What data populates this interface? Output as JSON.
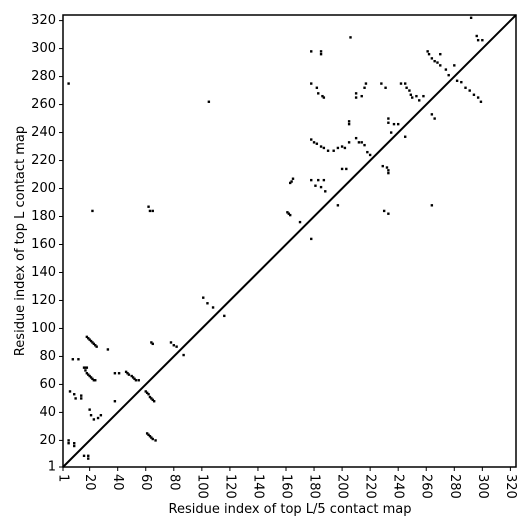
{
  "chart_data": {
    "type": "scatter",
    "xlabel": "Residue index of top L/5 contact map",
    "ylabel": "Residue index of top L contact map",
    "xlim": [
      1,
      324
    ],
    "ylim": [
      1,
      324
    ],
    "xticks": [
      1,
      20,
      40,
      60,
      80,
      100,
      120,
      140,
      160,
      180,
      200,
      220,
      240,
      260,
      280,
      300,
      320
    ],
    "yticks": [
      1,
      20,
      40,
      60,
      80,
      100,
      120,
      140,
      160,
      180,
      200,
      220,
      240,
      260,
      280,
      300,
      320
    ],
    "color": "#000000",
    "x": [
      5,
      18,
      19,
      20,
      21,
      22,
      23,
      24,
      25,
      17,
      18,
      19,
      20,
      21,
      22,
      23,
      24,
      16,
      17,
      18,
      8,
      12,
      6,
      9,
      14,
      14,
      10,
      20,
      21,
      23,
      26,
      28,
      5,
      5,
      9,
      9,
      16,
      19,
      19,
      22,
      38,
      41,
      33,
      38,
      46,
      47,
      48,
      50,
      51,
      52,
      53,
      55,
      60,
      61,
      62,
      63,
      64,
      65,
      66,
      61,
      62,
      63,
      64,
      65,
      67,
      62,
      63,
      65,
      64,
      65,
      78,
      80,
      82,
      87,
      101,
      104,
      108,
      116,
      105,
      161,
      162,
      163,
      164,
      163,
      165,
      170,
      178,
      185,
      185,
      178,
      182,
      183,
      186,
      187,
      178,
      180,
      182,
      185,
      187,
      190,
      194,
      197,
      200,
      202,
      205,
      178,
      183,
      187,
      181,
      185,
      188,
      178,
      197,
      200,
      203,
      205,
      205,
      206,
      210,
      210,
      214,
      216,
      217,
      210,
      212,
      214,
      216,
      218,
      220,
      228,
      231,
      229,
      232,
      233,
      233,
      230,
      233,
      233,
      233,
      235,
      237,
      240,
      242,
      245,
      246,
      248,
      249,
      250,
      253,
      255,
      245,
      258,
      261,
      262,
      264,
      266,
      268,
      270,
      274,
      276,
      264,
      266,
      264,
      270,
      280,
      282,
      285,
      288,
      291,
      294,
      297,
      299,
      292,
      296,
      297,
      300
    ],
    "values": [
      275,
      94,
      93,
      92,
      91,
      90,
      89,
      88,
      87,
      70,
      68,
      67,
      66,
      65,
      64,
      63,
      63,
      72,
      72,
      72,
      78,
      78,
      55,
      53,
      52,
      50,
      50,
      42,
      38,
      35,
      36,
      38,
      20,
      18,
      18,
      16,
      9,
      9,
      7,
      184,
      68,
      68,
      85,
      48,
      69,
      68,
      67,
      66,
      65,
      64,
      63,
      63,
      55,
      54,
      53,
      51,
      50,
      49,
      48,
      25,
      24,
      23,
      22,
      21,
      20,
      187,
      184,
      184,
      90,
      89,
      90,
      88,
      87,
      81,
      122,
      118,
      115,
      109,
      262,
      183,
      182,
      181,
      205,
      204,
      207,
      176,
      298,
      298,
      296,
      275,
      272,
      268,
      266,
      265,
      235,
      233,
      232,
      230,
      229,
      227,
      227,
      229,
      230,
      229,
      233,
      206,
      206,
      206,
      202,
      201,
      198,
      164,
      188,
      214,
      214,
      248,
      246,
      308,
      268,
      265,
      266,
      272,
      275,
      236,
      233,
      233,
      231,
      226,
      224,
      275,
      272,
      216,
      215,
      213,
      211,
      184,
      182,
      250,
      247,
      240,
      246,
      246,
      275,
      275,
      272,
      270,
      267,
      265,
      266,
      263,
      237,
      266,
      298,
      296,
      293,
      291,
      290,
      288,
      285,
      281,
      253,
      250,
      188,
      296,
      288,
      277,
      276,
      272,
      270,
      267,
      265,
      262,
      322,
      309,
      306,
      306
    ]
  }
}
